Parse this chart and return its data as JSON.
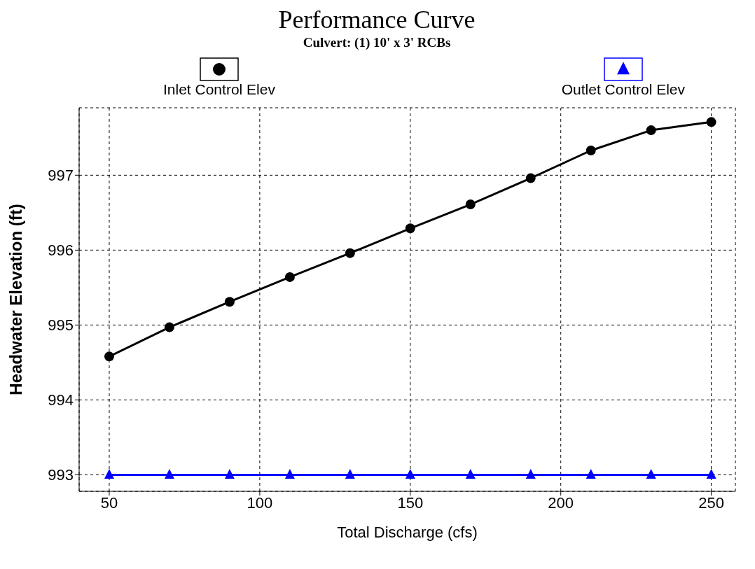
{
  "chart_data": {
    "type": "line",
    "title": "Performance Curve",
    "subtitle": "Culvert: (1) 10' x 3' RCBs",
    "xlabel": "Total Discharge (cfs)",
    "ylabel": "Headwater Elevation (ft)",
    "x": [
      50,
      70,
      90,
      110,
      130,
      150,
      170,
      190,
      210,
      230,
      250
    ],
    "series": [
      {
        "name": "Inlet Control Elev",
        "color": "#000000",
        "marker": "circle",
        "values": [
          994.58,
          994.97,
          995.31,
          995.64,
          995.96,
          996.29,
          996.61,
          996.96,
          997.33,
          997.6,
          997.71
        ]
      },
      {
        "name": "Outlet Control Elev",
        "color": "#0000ff",
        "marker": "triangle",
        "values": [
          993,
          993,
          993,
          993,
          993,
          993,
          993,
          993,
          993,
          993,
          993
        ]
      }
    ],
    "xlim": [
      40,
      258
    ],
    "xticks": [
      50,
      100,
      150,
      200,
      250
    ],
    "ylim": [
      992.78,
      997.9
    ],
    "yticks": [
      993,
      994,
      995,
      996,
      997
    ],
    "grid": true,
    "legend": "top",
    "line_style": "solid"
  }
}
